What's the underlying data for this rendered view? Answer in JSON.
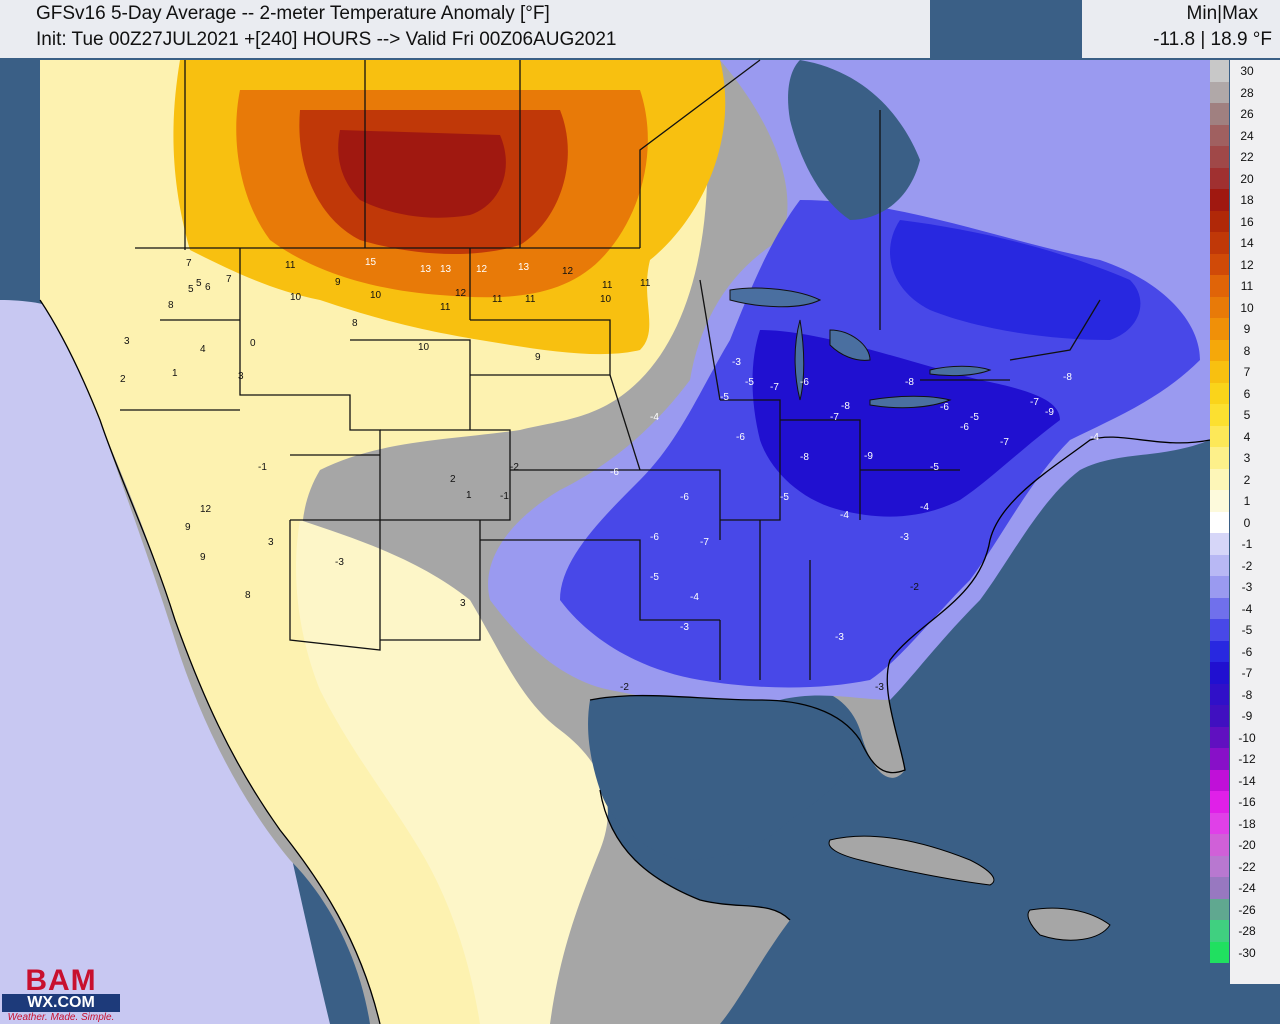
{
  "header": {
    "title": "GFSv16 5-Day Average -- 2-meter Temperature Anomaly [°F]",
    "init": "Init: Tue 00Z27JUL2021 +[240] HOURS --> Valid Fri 00Z06AUG2021"
  },
  "minmax": {
    "label": "Min|Max",
    "value": "-11.8 | 18.9 °F"
  },
  "legend": [
    {
      "label": "30",
      "color": "#c8c8c8"
    },
    {
      "label": "28",
      "color": "#b0a8a8"
    },
    {
      "label": "26",
      "color": "#a08080"
    },
    {
      "label": "24",
      "color": "#a06060"
    },
    {
      "label": "22",
      "color": "#a04848"
    },
    {
      "label": "20",
      "color": "#a03030"
    },
    {
      "label": "18",
      "color": "#a01810"
    },
    {
      "label": "16",
      "color": "#b02808"
    },
    {
      "label": "14",
      "color": "#c03808"
    },
    {
      "label": "12",
      "color": "#d04a08"
    },
    {
      "label": "11",
      "color": "#e06408"
    },
    {
      "label": "10",
      "color": "#e87a08"
    },
    {
      "label": "9",
      "color": "#f09008"
    },
    {
      "label": "8",
      "color": "#f5a80a"
    },
    {
      "label": "7",
      "color": "#f8c010"
    },
    {
      "label": "6",
      "color": "#fad41a"
    },
    {
      "label": "5",
      "color": "#fce030"
    },
    {
      "label": "4",
      "color": "#fde858"
    },
    {
      "label": "3",
      "color": "#fdf08a"
    },
    {
      "label": "2",
      "color": "#fdf6b8"
    },
    {
      "label": "1",
      "color": "#fdfadc"
    },
    {
      "label": "0",
      "color": "#ffffff"
    },
    {
      "label": "-1",
      "color": "#d6d6f8"
    },
    {
      "label": "-2",
      "color": "#b8b8f4"
    },
    {
      "label": "-3",
      "color": "#9a9af0"
    },
    {
      "label": "-4",
      "color": "#7070ec"
    },
    {
      "label": "-5",
      "color": "#4848e8"
    },
    {
      "label": "-6",
      "color": "#2828e0"
    },
    {
      "label": "-7",
      "color": "#2010d0"
    },
    {
      "label": "-8",
      "color": "#3010c8"
    },
    {
      "label": "-9",
      "color": "#4010c0"
    },
    {
      "label": "-10",
      "color": "#6010c0"
    },
    {
      "label": "-12",
      "color": "#8810c8"
    },
    {
      "label": "-14",
      "color": "#c010d8"
    },
    {
      "label": "-16",
      "color": "#e020e8"
    },
    {
      "label": "-18",
      "color": "#e040e8"
    },
    {
      "label": "-20",
      "color": "#d060d8"
    },
    {
      "label": "-22",
      "color": "#b878d0"
    },
    {
      "label": "-24",
      "color": "#9878c0"
    },
    {
      "label": "-26",
      "color": "#60a890"
    },
    {
      "label": "-28",
      "color": "#40d080"
    },
    {
      "label": "-30",
      "color": "#20e060"
    }
  ],
  "logo": {
    "top": "BAM",
    "middle": "WX.COM",
    "tagline": "Weather. Made. Simple."
  },
  "colors": {
    "ocean": "#3a5f86",
    "warm": "#f5a80a",
    "hot": "#a01810",
    "cool": "#4848e8",
    "neutral": "#a6a6a6",
    "land_light": "#fdf2b0"
  },
  "station_values": [
    {
      "v": "15",
      "c": "#fff"
    },
    {
      "v": "13",
      "c": "#fff"
    },
    {
      "v": "13",
      "c": "#fff"
    },
    {
      "v": "12",
      "c": "#fff"
    },
    {
      "v": "13",
      "c": "#fff"
    },
    {
      "v": "12",
      "c": "#111"
    },
    {
      "v": "11",
      "c": "#111"
    },
    {
      "v": "10",
      "c": "#111"
    },
    {
      "v": "11",
      "c": "#111"
    },
    {
      "v": "9",
      "c": "#111"
    },
    {
      "v": "10",
      "c": "#111"
    },
    {
      "v": "11",
      "c": "#111"
    },
    {
      "v": "12",
      "c": "#111"
    },
    {
      "v": "11",
      "c": "#111"
    },
    {
      "v": "10",
      "c": "#111"
    },
    {
      "v": "11",
      "c": "#111"
    },
    {
      "v": "11",
      "c": "#111"
    },
    {
      "v": "10",
      "c": "#111"
    },
    {
      "v": "9",
      "c": "#111"
    },
    {
      "v": "8",
      "c": "#111"
    },
    {
      "v": "7",
      "c": "#111"
    },
    {
      "v": "5",
      "c": "#111"
    },
    {
      "v": "7",
      "c": "#111"
    },
    {
      "v": "8",
      "c": "#111"
    },
    {
      "v": "6",
      "c": "#111"
    },
    {
      "v": "5",
      "c": "#111"
    },
    {
      "v": "3",
      "c": "#111"
    },
    {
      "v": "4",
      "c": "#111"
    },
    {
      "v": "2",
      "c": "#111"
    },
    {
      "v": "3",
      "c": "#111"
    },
    {
      "v": "0",
      "c": "#111"
    },
    {
      "v": "1",
      "c": "#111"
    },
    {
      "v": "12",
      "c": "#111"
    },
    {
      "v": "9",
      "c": "#111"
    },
    {
      "v": "9",
      "c": "#111"
    },
    {
      "v": "8",
      "c": "#111"
    },
    {
      "v": "3",
      "c": "#111"
    },
    {
      "v": "-1",
      "c": "#111"
    },
    {
      "v": "-3",
      "c": "#111"
    },
    {
      "v": "-2",
      "c": "#111"
    },
    {
      "v": "-1",
      "c": "#111"
    },
    {
      "v": "3",
      "c": "#111"
    },
    {
      "v": "2",
      "c": "#111"
    },
    {
      "v": "1",
      "c": "#111"
    },
    {
      "v": "-3",
      "c": "#fff"
    },
    {
      "v": "-5",
      "c": "#fff"
    },
    {
      "v": "-6",
      "c": "#fff"
    },
    {
      "v": "-7",
      "c": "#fff"
    },
    {
      "v": "-8",
      "c": "#fff"
    },
    {
      "v": "-9",
      "c": "#fff"
    },
    {
      "v": "-6",
      "c": "#fff"
    },
    {
      "v": "-4",
      "c": "#fff"
    },
    {
      "v": "-5",
      "c": "#fff"
    },
    {
      "v": "-7",
      "c": "#fff"
    },
    {
      "v": "-8",
      "c": "#fff"
    },
    {
      "v": "-6",
      "c": "#fff"
    },
    {
      "v": "-5",
      "c": "#fff"
    },
    {
      "v": "-4",
      "c": "#fff"
    },
    {
      "v": "-3",
      "c": "#fff"
    },
    {
      "v": "-6",
      "c": "#fff"
    },
    {
      "v": "-7",
      "c": "#fff"
    },
    {
      "v": "-6",
      "c": "#fff"
    },
    {
      "v": "-5",
      "c": "#fff"
    },
    {
      "v": "-4",
      "c": "#fff"
    },
    {
      "v": "-3",
      "c": "#fff"
    },
    {
      "v": "-2",
      "c": "#111"
    },
    {
      "v": "-9",
      "c": "#fff"
    },
    {
      "v": "-8",
      "c": "#fff"
    },
    {
      "v": "-7",
      "c": "#fff"
    },
    {
      "v": "-6",
      "c": "#fff"
    },
    {
      "v": "-5",
      "c": "#fff"
    },
    {
      "v": "-4",
      "c": "#fff"
    },
    {
      "v": "-3",
      "c": "#fff"
    },
    {
      "v": "-2",
      "c": "#111"
    },
    {
      "v": "-8",
      "c": "#fff"
    },
    {
      "v": "-6",
      "c": "#fff"
    },
    {
      "v": "-5",
      "c": "#fff"
    },
    {
      "v": "-7",
      "c": "#fff"
    },
    {
      "v": "-4",
      "c": "#fff"
    },
    {
      "v": "-3",
      "c": "#111"
    }
  ]
}
